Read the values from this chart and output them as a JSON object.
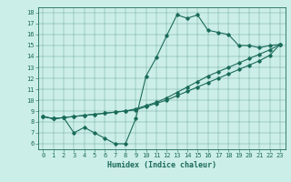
{
  "xlabel": "Humidex (Indice chaleur)",
  "ylabel": "",
  "bg_color": "#cceee8",
  "line_color": "#1a6b5a",
  "xlim": [
    -0.5,
    23.5
  ],
  "ylim": [
    5.5,
    18.5
  ],
  "xticks": [
    0,
    1,
    2,
    3,
    4,
    5,
    6,
    7,
    8,
    9,
    10,
    11,
    12,
    13,
    14,
    15,
    16,
    17,
    18,
    19,
    20,
    21,
    22,
    23
  ],
  "yticks": [
    6,
    7,
    8,
    9,
    10,
    11,
    12,
    13,
    14,
    15,
    16,
    17,
    18
  ],
  "line1_x": [
    0,
    1,
    2,
    3,
    4,
    5,
    6,
    7,
    8,
    9,
    10,
    11,
    12,
    13,
    14,
    15,
    16,
    17,
    18,
    19,
    20,
    21,
    22,
    23
  ],
  "line1_y": [
    8.5,
    8.3,
    8.4,
    7.0,
    7.5,
    7.0,
    6.5,
    6.0,
    6.0,
    8.3,
    12.2,
    13.9,
    15.9,
    17.8,
    17.5,
    17.8,
    16.4,
    16.2,
    16.0,
    15.0,
    15.0,
    14.8,
    15.0,
    15.1
  ],
  "line2_x": [
    0,
    1,
    2,
    3,
    4,
    5,
    6,
    7,
    8,
    9,
    10,
    11,
    12,
    13,
    14,
    15,
    16,
    17,
    18,
    19,
    20,
    21,
    22,
    23
  ],
  "line2_y": [
    8.5,
    8.3,
    8.4,
    8.5,
    8.6,
    8.7,
    8.8,
    8.9,
    9.0,
    9.2,
    9.5,
    9.8,
    10.2,
    10.7,
    11.2,
    11.7,
    12.2,
    12.6,
    13.0,
    13.4,
    13.8,
    14.2,
    14.6,
    15.1
  ],
  "line3_x": [
    0,
    1,
    2,
    3,
    4,
    5,
    6,
    7,
    8,
    9,
    10,
    11,
    12,
    13,
    14,
    15,
    16,
    17,
    18,
    19,
    20,
    21,
    22,
    23
  ],
  "line3_y": [
    8.5,
    8.3,
    8.4,
    8.5,
    8.6,
    8.7,
    8.8,
    8.9,
    9.0,
    9.1,
    9.4,
    9.7,
    10.0,
    10.4,
    10.8,
    11.2,
    11.6,
    12.0,
    12.4,
    12.8,
    13.2,
    13.6,
    14.1,
    15.1
  ],
  "tick_fontsize": 5,
  "xlabel_fontsize": 6,
  "marker_size": 1.8,
  "line_width": 0.8
}
